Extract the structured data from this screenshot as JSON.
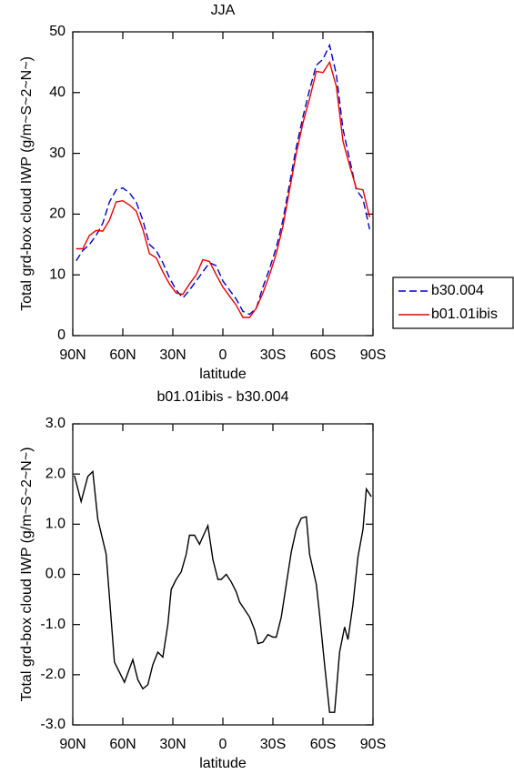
{
  "chart_data": [
    {
      "type": "line",
      "title": "JJA",
      "xlabel": "latitude",
      "ylabel": "Total grd-box cloud IWP (g/m~S~2~N~)",
      "x": [
        88,
        84,
        80,
        76,
        72,
        68,
        64,
        60,
        56,
        52,
        48,
        44,
        40,
        36,
        32,
        28,
        24,
        20,
        16,
        12,
        8,
        4,
        0,
        -4,
        -8,
        -12,
        -16,
        -20,
        -24,
        -28,
        -32,
        -36,
        -40,
        -44,
        -48,
        -52,
        -56,
        -60,
        -64,
        -68,
        -72,
        -76,
        -80,
        -84,
        -88
      ],
      "series": [
        {
          "name": "b30.004",
          "color": "#0000cc",
          "dash": "dashed",
          "values": [
            12.3,
            14,
            15,
            16.5,
            18.5,
            22,
            24,
            24.3,
            23.5,
            22,
            19,
            15,
            14,
            12,
            9.5,
            7.5,
            6.2,
            7.5,
            9,
            10.5,
            12,
            11.5,
            9,
            7.5,
            6,
            4,
            3.5,
            4.5,
            8,
            11,
            14.5,
            19,
            25,
            31,
            36,
            40.5,
            44.5,
            45.5,
            47.8,
            43,
            34,
            29,
            24,
            22.5,
            17.5
          ]
        },
        {
          "name": "b01.01ibis",
          "color": "#ee0000",
          "dash": "solid",
          "values": [
            14.3,
            14.3,
            16.5,
            17.3,
            17.2,
            19,
            22,
            22.2,
            21.5,
            20.5,
            17.5,
            13.5,
            12.8,
            10.5,
            8.5,
            7,
            6.8,
            8.5,
            10,
            12.5,
            12.2,
            10,
            8,
            6.5,
            5,
            3,
            3,
            4.5,
            7,
            10,
            13.5,
            18,
            24,
            30,
            35,
            39,
            43.5,
            43.3,
            45,
            41,
            32,
            28,
            24.2,
            24,
            19.5
          ]
        }
      ],
      "xlim": [
        90,
        -90
      ],
      "xticks": [
        {
          "value": 90,
          "label": "90N"
        },
        {
          "value": 60,
          "label": "60N"
        },
        {
          "value": 30,
          "label": "30N"
        },
        0,
        {
          "value": -30,
          "label": "30S"
        },
        {
          "value": -60,
          "label": "60S"
        },
        {
          "value": -90,
          "label": "90S"
        }
      ],
      "ylim": [
        0,
        50
      ],
      "yticks": [
        0,
        10,
        20,
        30,
        40,
        50
      ],
      "legend": "right"
    },
    {
      "type": "line",
      "title": "b01.01ibis - b30.004",
      "xlabel": "latitude",
      "ylabel": "Total grd-box cloud IWP (g/m~S~2~N~)",
      "x": [
        89,
        85,
        81,
        78,
        75,
        70,
        65,
        59,
        54,
        51,
        48,
        45,
        42,
        39,
        36,
        33,
        31,
        28,
        25,
        22,
        20,
        17,
        14,
        12,
        9,
        6,
        3,
        1,
        -2,
        -5,
        -8,
        -10,
        -13,
        -16,
        -19,
        -21,
        -24,
        -27,
        -30,
        -32,
        -35,
        -38,
        -41,
        -44,
        -47,
        -50,
        -52,
        -56,
        -58,
        -61,
        -64,
        -67,
        -70,
        -73,
        -75,
        -78,
        -81,
        -84,
        -86,
        -89
      ],
      "values": [
        1.97,
        1.45,
        1.95,
        2.05,
        1.1,
        0.4,
        -1.75,
        -2.15,
        -1.7,
        -2.1,
        -2.28,
        -2.2,
        -1.8,
        -1.55,
        -1.65,
        -1.0,
        -0.3,
        -0.1,
        0.05,
        0.4,
        0.78,
        0.78,
        0.6,
        0.75,
        0.97,
        0.3,
        -0.1,
        -0.1,
        0.0,
        -0.15,
        -0.35,
        -0.55,
        -0.7,
        -0.85,
        -1.1,
        -1.38,
        -1.35,
        -1.2,
        -1.25,
        -1.25,
        -0.85,
        -0.2,
        0.45,
        0.9,
        1.12,
        1.15,
        0.4,
        -0.2,
        -0.8,
        -1.8,
        -2.75,
        -2.75,
        -1.55,
        -1.05,
        -1.3,
        -0.6,
        0.35,
        0.9,
        1.7,
        1.55
      ],
      "color": "#000000",
      "xlim": [
        90,
        -90
      ],
      "xticks": [
        {
          "value": 90,
          "label": "90N"
        },
        {
          "value": 60,
          "label": "60N"
        },
        {
          "value": 30,
          "label": "30N"
        },
        0,
        {
          "value": -30,
          "label": "30S"
        },
        {
          "value": -60,
          "label": "60S"
        },
        {
          "value": -90,
          "label": "90S"
        }
      ],
      "ylim": [
        -3,
        3
      ],
      "yticks": [
        {
          "value": -3,
          "label": "-3.0"
        },
        {
          "value": -2,
          "label": "-2.0"
        },
        {
          "value": -1,
          "label": "-1.0"
        },
        {
          "value": 0,
          "label": "0.0"
        },
        {
          "value": 1,
          "label": "1.0"
        },
        {
          "value": 2,
          "label": "2.0"
        },
        {
          "value": 3,
          "label": "3.0"
        }
      ]
    }
  ]
}
